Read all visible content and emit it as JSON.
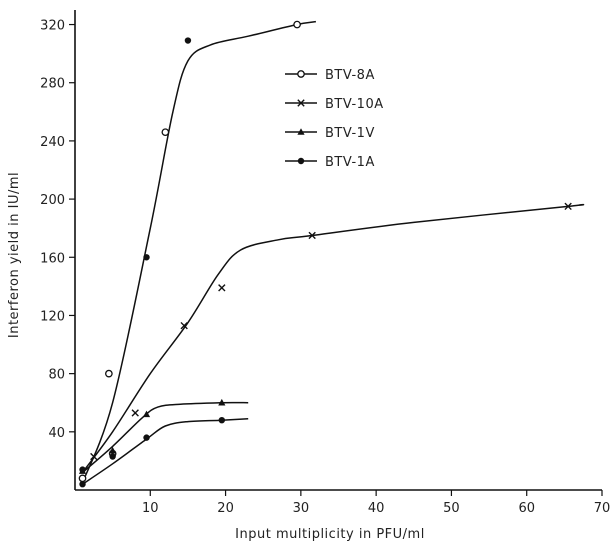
{
  "chart_data": {
    "type": "line",
    "title": "",
    "xlabel": "Input multiplicity in PFU/ml",
    "ylabel": "Interferon yield in IU/ml",
    "xlim": [
      0,
      70
    ],
    "ylim": [
      0,
      330
    ],
    "x_ticks": [
      10,
      20,
      30,
      40,
      50,
      60,
      70
    ],
    "y_ticks": [
      40,
      80,
      120,
      160,
      200,
      240,
      280,
      320
    ],
    "grid": false,
    "legend_position": "top-center",
    "series": [
      {
        "name": "BTV-8A",
        "marker": "open-circle",
        "points": [
          [
            1,
            8
          ],
          [
            4.5,
            80
          ],
          [
            5,
            25
          ],
          [
            12,
            246
          ],
          [
            29.5,
            320
          ]
        ],
        "curve": [
          [
            1,
            5
          ],
          [
            5,
            60
          ],
          [
            10,
            180
          ],
          [
            13,
            260
          ],
          [
            15,
            295
          ],
          [
            18,
            306
          ],
          [
            23,
            312
          ],
          [
            29.5,
            320
          ],
          [
            32,
            322
          ]
        ]
      },
      {
        "name": "BTV-10A",
        "marker": "x",
        "points": [
          [
            2.5,
            23
          ],
          [
            8,
            53
          ],
          [
            14.5,
            113
          ],
          [
            19.5,
            139
          ],
          [
            31.5,
            175
          ],
          [
            65.5,
            195
          ]
        ],
        "curve": [
          [
            1,
            12
          ],
          [
            5,
            40
          ],
          [
            10,
            80
          ],
          [
            15,
            115
          ],
          [
            19,
            148
          ],
          [
            22,
            165
          ],
          [
            27,
            172
          ],
          [
            31.5,
            175
          ],
          [
            45,
            184
          ],
          [
            65.5,
            195
          ],
          [
            67,
            196
          ]
        ]
      },
      {
        "name": "BTV-1V",
        "marker": "triangle",
        "points": [
          [
            1,
            13
          ],
          [
            5,
            27
          ],
          [
            9.5,
            52
          ],
          [
            19.5,
            60
          ]
        ],
        "curve": [
          [
            1,
            12
          ],
          [
            5,
            30
          ],
          [
            9,
            50
          ],
          [
            11,
            57
          ],
          [
            14,
            59
          ],
          [
            19.5,
            60
          ],
          [
            23,
            60
          ]
        ]
      },
      {
        "name": "BTV-1A",
        "marker": "filled-circle",
        "points": [
          [
            1,
            4
          ],
          [
            1,
            14
          ],
          [
            5,
            23
          ],
          [
            9.5,
            160
          ],
          [
            9.5,
            36
          ],
          [
            15,
            309
          ],
          [
            19.5,
            48
          ]
        ],
        "curve": [
          [
            1,
            4
          ],
          [
            5,
            18
          ],
          [
            9.5,
            35
          ],
          [
            12,
            44
          ],
          [
            15,
            47
          ],
          [
            19.5,
            48
          ],
          [
            23,
            49
          ]
        ]
      }
    ]
  }
}
